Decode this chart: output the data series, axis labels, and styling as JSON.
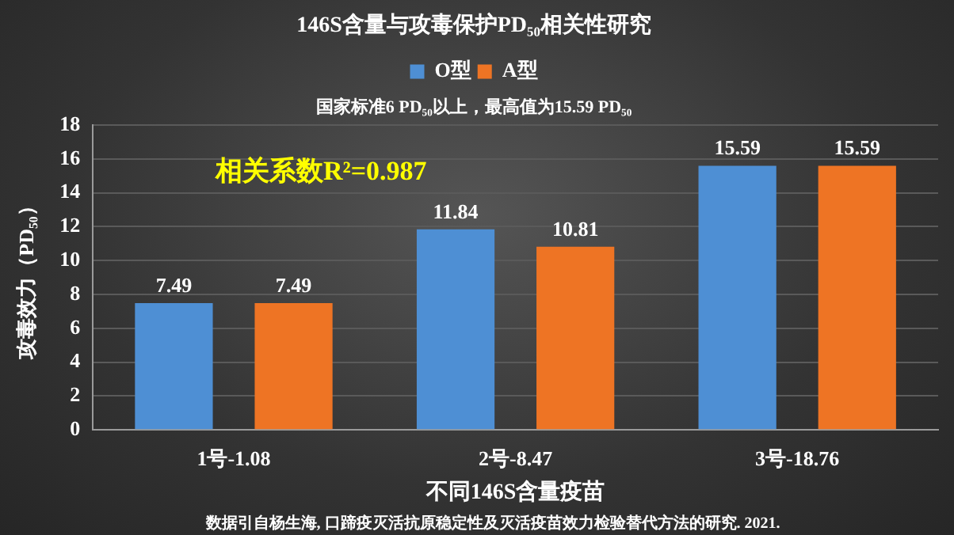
{
  "chart_data": {
    "type": "bar",
    "title": "146S含量与攻毒保护PD₅₀相关性研究",
    "subtitle": "国家标准6 PD₅₀以上，最高值为15.59 PD₅₀",
    "xlabel": "不同146S含量疫苗",
    "ylabel": "攻毒效力（PD₅₀）",
    "categories": [
      "1号-1.08",
      "2号-8.47",
      "3号-18.76"
    ],
    "series": [
      {
        "name": "O型",
        "color": "#4e8fd4",
        "values": [
          7.49,
          11.84,
          15.59
        ]
      },
      {
        "name": "A型",
        "color": "#ee7424",
        "values": [
          7.49,
          10.81,
          15.59
        ]
      }
    ],
    "ylim": [
      0,
      18
    ],
    "yticks": [
      0,
      2,
      4,
      6,
      8,
      10,
      12,
      14,
      16,
      18
    ],
    "grid": "y",
    "legend": "top",
    "data_labels": true,
    "annotations": [
      "相关系数R²=0.987",
      "数据引自杨生海, 口蹄疫灭活抗原稳定性及灭活疫苗效力检验替代方法的研究. 2021."
    ]
  }
}
